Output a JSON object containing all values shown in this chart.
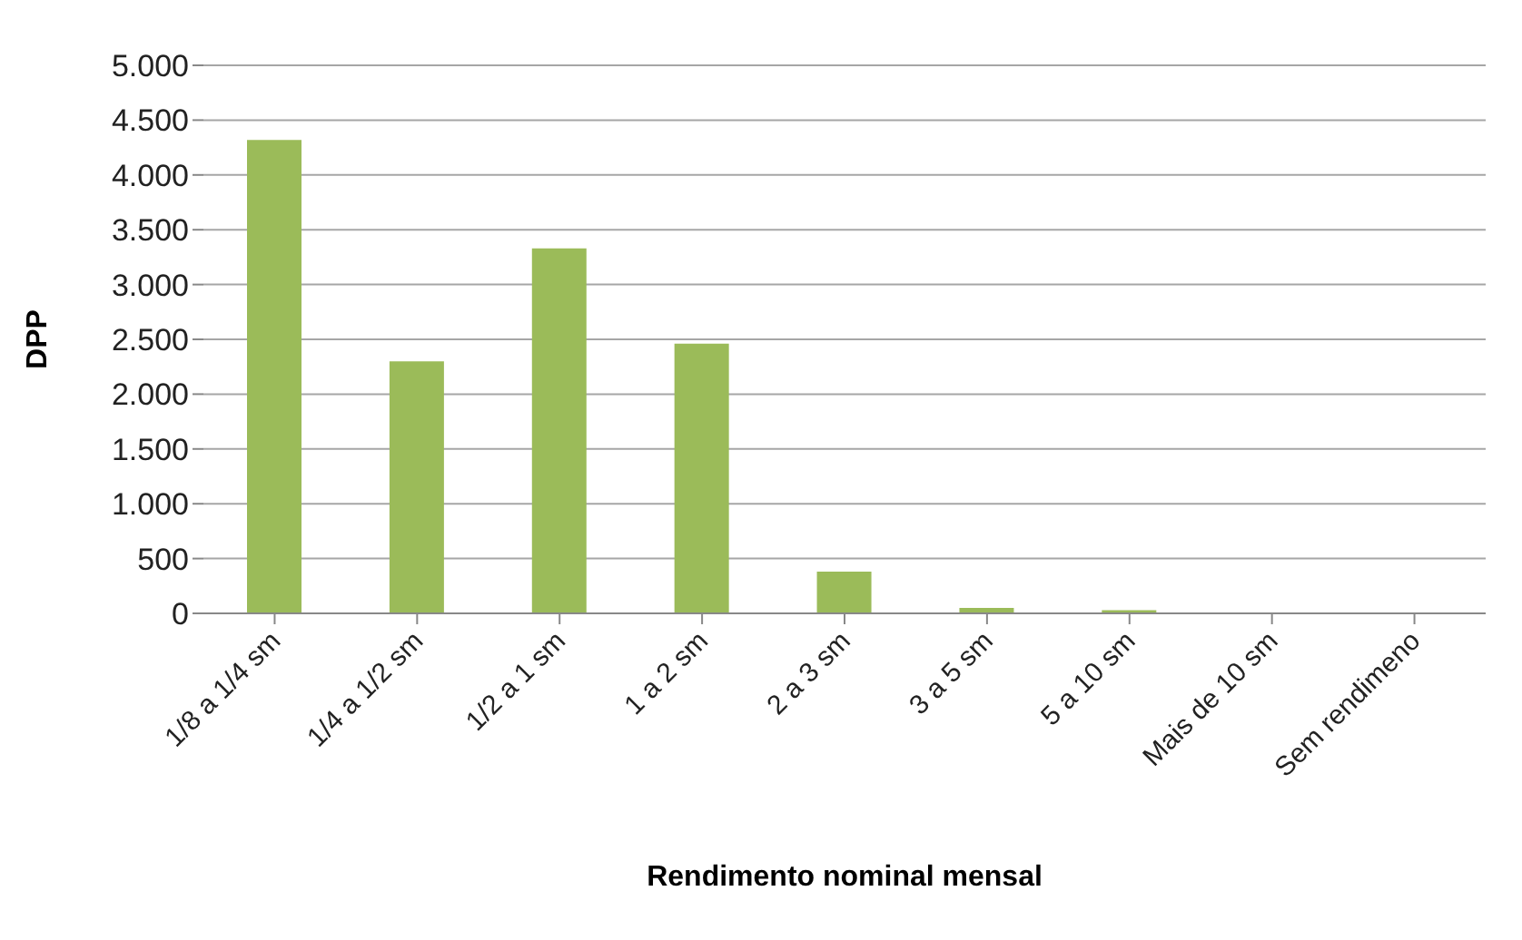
{
  "chart_data": {
    "type": "bar",
    "xlabel": "Rendimento nominal mensal",
    "ylabel": "DPP",
    "categories": [
      "1/8 a 1/4 sm",
      "1/4 a 1/2 sm",
      "1/2 a 1 sm",
      "1 a 2 sm",
      "2 a 3 sm",
      "3 a 5 sm",
      "5 a 10 sm",
      "Mais de 10 sm",
      "Sem rendimeno"
    ],
    "values": [
      4320,
      2300,
      3330,
      2460,
      380,
      50,
      30,
      0,
      0
    ],
    "color": "#9bbb59",
    "ylim": [
      0,
      5000
    ],
    "yticks": [
      {
        "value": 0,
        "label": "0"
      },
      {
        "value": 500,
        "label": "500"
      },
      {
        "value": 1000,
        "label": "1.000"
      },
      {
        "value": 1500,
        "label": "1.500"
      },
      {
        "value": 2000,
        "label": "2.000"
      },
      {
        "value": 2500,
        "label": "2.500"
      },
      {
        "value": 3000,
        "label": "3.000"
      },
      {
        "value": 3500,
        "label": "3.500"
      },
      {
        "value": 4000,
        "label": "4.000"
      },
      {
        "value": 4500,
        "label": "4.500"
      },
      {
        "value": 5000,
        "label": "5.000"
      }
    ],
    "grid": "y",
    "legend": false
  }
}
